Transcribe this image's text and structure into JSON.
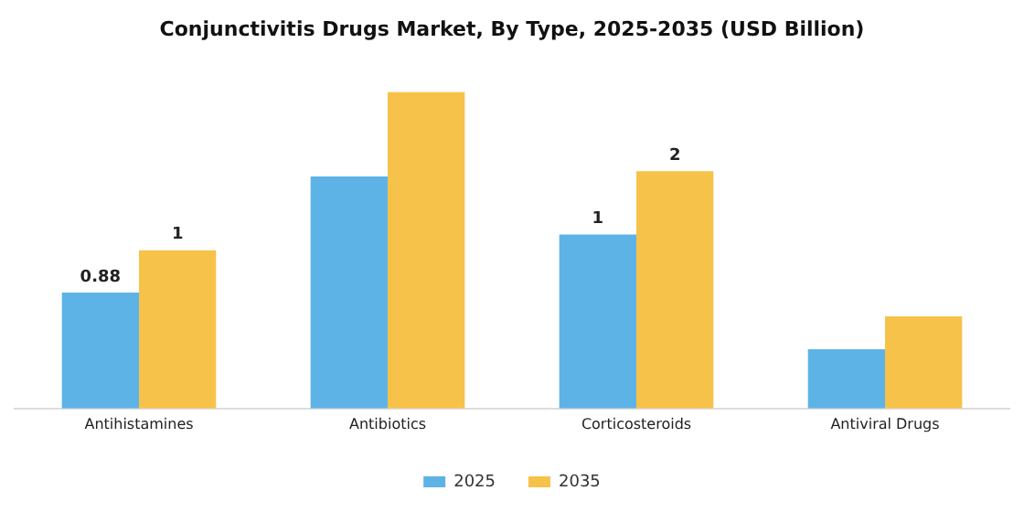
{
  "chart_data": {
    "type": "bar",
    "title": "Conjunctivitis Drugs Market, By Type, 2025-2035 (USD Billion)",
    "categories": [
      "Antihistamines",
      "Antibiotics",
      "Corticosteroids",
      "Antiviral Drugs"
    ],
    "series": [
      {
        "name": "2025",
        "color": "#5db3e6",
        "values": [
          0.88,
          1.76,
          1.32,
          0.45
        ],
        "value_labels": [
          "0.88",
          null,
          "1",
          null
        ]
      },
      {
        "name": "2035",
        "color": "#f7c24a",
        "values": [
          1.2,
          2.4,
          1.8,
          0.7
        ],
        "value_labels": [
          "1",
          null,
          "2",
          null
        ]
      }
    ],
    "legend": "bottom",
    "grid": false
  }
}
